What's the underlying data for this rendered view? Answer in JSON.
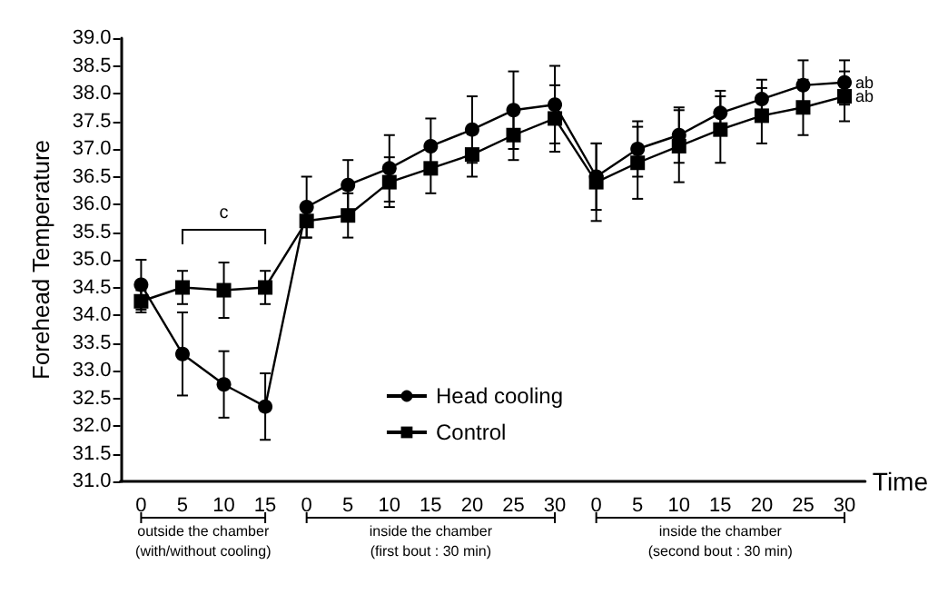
{
  "chart_data": {
    "type": "line",
    "ylabel": "Forehead Temperature",
    "xlabel": "Time",
    "categories": [
      "0",
      "5",
      "10",
      "15",
      "0",
      "5",
      "10",
      "15",
      "20",
      "25",
      "30",
      "0",
      "5",
      "10",
      "15",
      "20",
      "25",
      "30"
    ],
    "series": [
      {
        "name": "Head cooling",
        "color": "#000000",
        "marker": "circle",
        "values": [
          34.55,
          33.3,
          32.75,
          32.35,
          35.95,
          36.35,
          36.65,
          37.05,
          37.35,
          37.7,
          37.8,
          36.5,
          37.0,
          37.25,
          37.65,
          37.9,
          38.15,
          38.2
        ],
        "errors": [
          0.45,
          0.75,
          0.6,
          0.6,
          0.55,
          0.45,
          0.6,
          0.5,
          0.6,
          0.7,
          0.7,
          0.6,
          0.5,
          0.5,
          0.4,
          0.35,
          0.45,
          0.4
        ]
      },
      {
        "name": "Control",
        "color": "#000000",
        "marker": "square",
        "values": [
          34.25,
          34.5,
          34.45,
          34.5,
          35.7,
          35.8,
          36.4,
          36.65,
          36.9,
          37.25,
          37.55,
          36.4,
          36.75,
          37.05,
          37.35,
          37.6,
          37.75,
          37.95
        ],
        "errors": [
          0.2,
          0.3,
          0.5,
          0.3,
          0.3,
          0.4,
          0.45,
          0.45,
          0.4,
          0.45,
          0.6,
          0.7,
          0.65,
          0.65,
          0.6,
          0.5,
          0.5,
          0.45
        ]
      }
    ],
    "ylim": [
      31,
      39
    ],
    "yticks": [
      {
        "value": 31,
        "label": "31.0"
      },
      {
        "value": 31.5,
        "label": "31.5"
      },
      {
        "value": 32,
        "label": "32.0"
      },
      {
        "value": 32.5,
        "label": "32.5"
      },
      {
        "value": 33,
        "label": "33.0"
      },
      {
        "value": 33.5,
        "label": "33.5"
      },
      {
        "value": 34,
        "label": "34.0"
      },
      {
        "value": 34.5,
        "label": "34.5"
      },
      {
        "value": 35,
        "label": "35.0"
      },
      {
        "value": 35.5,
        "label": "35.5"
      },
      {
        "value": 36,
        "label": "36.0"
      },
      {
        "value": 36.5,
        "label": "36.5"
      },
      {
        "value": 37,
        "label": "37.0"
      },
      {
        "value": 37.5,
        "label": "37.5"
      },
      {
        "value": 38,
        "label": "38.0"
      },
      {
        "value": 38.5,
        "label": "38.5"
      },
      {
        "value": 39,
        "label": "39.0"
      }
    ],
    "grid": false,
    "legend": "bottom",
    "line_style": "solid",
    "annotations": [
      "c",
      "ab",
      "ab",
      "outside the chamber\n(with/without cooling)",
      "inside the chamber\n(first bout : 30 min)",
      "inside the chamber\n(second bout : 30 min)"
    ]
  }
}
